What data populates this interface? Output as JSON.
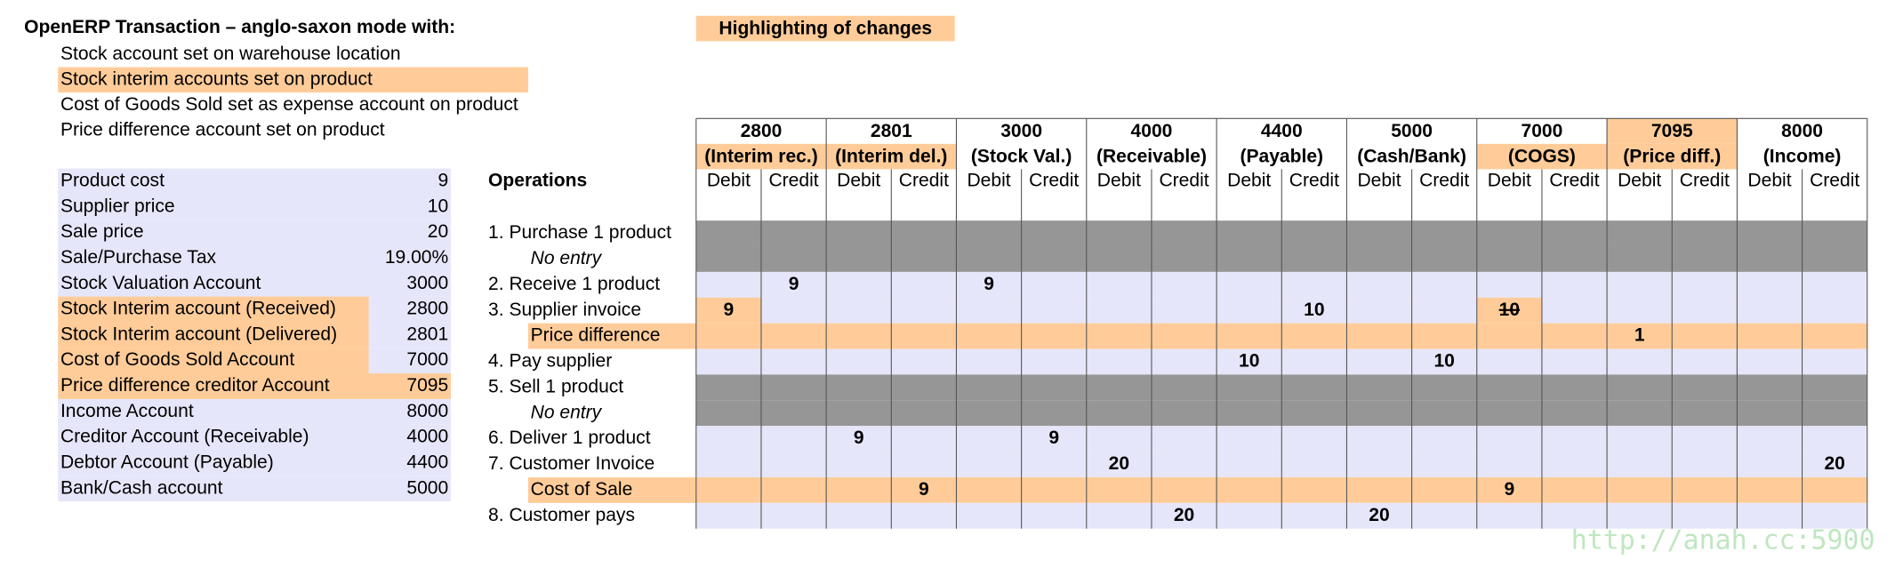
{
  "title": "OpenERP Transaction – anglo-saxon mode with:",
  "notes": [
    {
      "text": "Stock account set on warehouse location",
      "highlighted": false
    },
    {
      "text": "Stock interim accounts set on product",
      "highlighted": true
    },
    {
      "text": "Cost of Goods Sold set as expense account on product",
      "highlighted": false
    },
    {
      "text": "Price difference account set on product",
      "highlighted": false
    }
  ],
  "legend": "Highlighting of changes",
  "params": [
    {
      "label": "Product cost",
      "value": "9",
      "highlight_label": false,
      "highlight_value": false
    },
    {
      "label": "Supplier price",
      "value": "10",
      "highlight_label": false,
      "highlight_value": false
    },
    {
      "label": "Sale price",
      "value": "20",
      "highlight_label": false,
      "highlight_value": false
    },
    {
      "label": "Sale/Purchase Tax",
      "value": "19.00%",
      "highlight_label": false,
      "highlight_value": false
    },
    {
      "label": "Stock Valuation Account",
      "value": "3000",
      "highlight_label": false,
      "highlight_value": false
    },
    {
      "label": "Stock Interim account (Received)",
      "value": "2800",
      "highlight_label": true,
      "highlight_value": false
    },
    {
      "label": "Stock Interim account (Delivered)",
      "value": "2801",
      "highlight_label": true,
      "highlight_value": false
    },
    {
      "label": "Cost of Goods Sold Account",
      "value": "7000",
      "highlight_label": true,
      "highlight_value": false
    },
    {
      "label": "Price difference creditor Account",
      "value": "7095",
      "highlight_label": true,
      "highlight_value": true
    },
    {
      "label": "Income Account",
      "value": "8000",
      "highlight_label": false,
      "highlight_value": false
    },
    {
      "label": "Creditor Account (Receivable)",
      "value": "4000",
      "highlight_label": false,
      "highlight_value": false
    },
    {
      "label": "Debtor Account (Payable)",
      "value": "4400",
      "highlight_label": false,
      "highlight_value": false
    },
    {
      "label": "Bank/Cash account",
      "value": "5000",
      "highlight_label": false,
      "highlight_value": false
    }
  ],
  "table": {
    "operations_header": "Operations",
    "subheaders": [
      "Debit",
      "Credit"
    ],
    "accounts": [
      {
        "code": "2800",
        "name": "(Interim rec.)",
        "highlight_code": false,
        "highlight_name": true
      },
      {
        "code": "2801",
        "name": "(Interim del.)",
        "highlight_code": false,
        "highlight_name": true
      },
      {
        "code": "3000",
        "name": "(Stock Val.)",
        "highlight_code": false,
        "highlight_name": false
      },
      {
        "code": "4000",
        "name": "(Receivable)",
        "highlight_code": false,
        "highlight_name": false
      },
      {
        "code": "4400",
        "name": "(Payable)",
        "highlight_code": false,
        "highlight_name": false
      },
      {
        "code": "5000",
        "name": "(Cash/Bank)",
        "highlight_code": false,
        "highlight_name": false
      },
      {
        "code": "7000",
        "name": "(COGS)",
        "highlight_code": false,
        "highlight_name": true
      },
      {
        "code": "7095",
        "name": "(Price diff.)",
        "highlight_code": true,
        "highlight_name": true
      },
      {
        "code": "8000",
        "name": "(Income)",
        "highlight_code": false,
        "highlight_name": false
      }
    ],
    "rows": [
      {
        "label": "1. Purchase 1 product",
        "style": "grey",
        "indent": false,
        "italic": false,
        "cells": {}
      },
      {
        "label": "No entry",
        "style": "grey",
        "indent": true,
        "italic": true,
        "cells": {}
      },
      {
        "label": "2. Receive 1 product",
        "style": "normal",
        "indent": false,
        "italic": false,
        "cells": {
          "1": "9",
          "4": "9"
        }
      },
      {
        "label": "3. Supplier invoice",
        "style": "normal",
        "indent": false,
        "italic": false,
        "cells": {
          "0": "9",
          "9": "10",
          "12": "10"
        },
        "highlighted_cells": [
          0,
          12
        ],
        "struck_cells": [
          12
        ]
      },
      {
        "label": "Price difference",
        "style": "orange",
        "indent": true,
        "italic": false,
        "cells": {
          "14": "1"
        }
      },
      {
        "label": "4. Pay supplier",
        "style": "normal",
        "indent": false,
        "italic": false,
        "cells": {
          "8": "10",
          "11": "10"
        }
      },
      {
        "label": "5. Sell 1 product",
        "style": "grey",
        "indent": false,
        "italic": false,
        "cells": {}
      },
      {
        "label": "No entry",
        "style": "grey",
        "indent": true,
        "italic": true,
        "cells": {}
      },
      {
        "label": "6. Deliver 1 product",
        "style": "normal",
        "indent": false,
        "italic": false,
        "cells": {
          "2": "9",
          "5": "9"
        }
      },
      {
        "label": "7. Customer Invoice",
        "style": "normal",
        "indent": false,
        "italic": false,
        "cells": {
          "6": "20",
          "17": "20"
        }
      },
      {
        "label": "Cost of Sale",
        "style": "orange",
        "indent": true,
        "italic": false,
        "cells": {
          "3": "9",
          "12": "9"
        }
      },
      {
        "label": "8. Customer pays",
        "style": "normal",
        "indent": false,
        "italic": false,
        "cells": {
          "7": "20",
          "10": "20"
        }
      }
    ]
  },
  "watermark": "http://anah.cc:5900"
}
